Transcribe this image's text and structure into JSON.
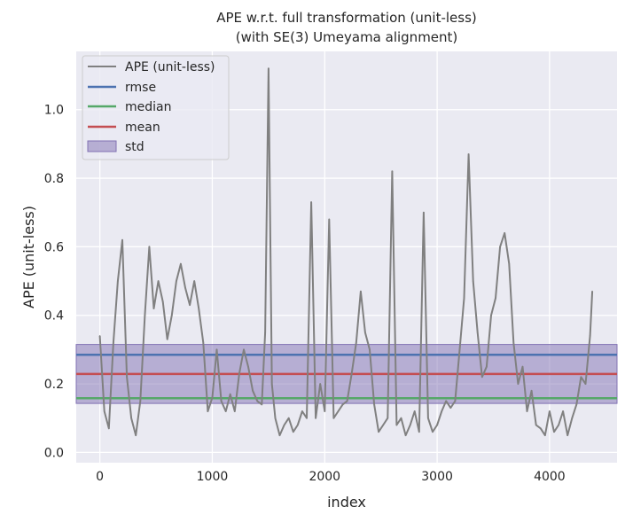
{
  "chart_data": {
    "type": "line",
    "title": "APE w.r.t. full transformation (unit-less)",
    "subtitle": "(with SE(3) Umeyama alignment)",
    "xlabel": "index",
    "ylabel": "APE (unit-less)",
    "xlim": [
      -210,
      4600
    ],
    "ylim": [
      -0.03,
      1.17
    ],
    "xticks": [
      0,
      1000,
      2000,
      3000,
      4000
    ],
    "yticks": [
      0.0,
      0.2,
      0.4,
      0.6,
      0.8,
      1.0
    ],
    "xtick_labels": [
      "0",
      "1000",
      "2000",
      "3000",
      "4000"
    ],
    "ytick_labels": [
      "0.0",
      "0.2",
      "0.4",
      "0.6",
      "0.8",
      "1.0"
    ],
    "grid": true,
    "legend_position": "top-left",
    "legend": [
      "APE (unit-less)",
      "rmse",
      "median",
      "mean",
      "std"
    ],
    "stats": {
      "rmse": 0.285,
      "median": 0.158,
      "mean": 0.229,
      "std_low": 0.143,
      "std_high": 0.315
    },
    "series": [
      {
        "name": "APE (unit-less)",
        "color": "#808080",
        "x": [
          0,
          40,
          80,
          120,
          160,
          200,
          240,
          280,
          320,
          360,
          400,
          440,
          480,
          520,
          560,
          600,
          640,
          680,
          720,
          760,
          800,
          840,
          880,
          920,
          960,
          1000,
          1040,
          1080,
          1120,
          1160,
          1200,
          1240,
          1280,
          1320,
          1360,
          1400,
          1440,
          1470,
          1500,
          1530,
          1560,
          1600,
          1640,
          1680,
          1720,
          1760,
          1800,
          1840,
          1880,
          1920,
          1960,
          2000,
          2040,
          2080,
          2120,
          2160,
          2200,
          2240,
          2280,
          2320,
          2360,
          2400,
          2440,
          2480,
          2520,
          2560,
          2600,
          2640,
          2680,
          2720,
          2760,
          2800,
          2840,
          2880,
          2920,
          2960,
          3000,
          3040,
          3080,
          3120,
          3160,
          3200,
          3240,
          3280,
          3320,
          3360,
          3400,
          3440,
          3480,
          3520,
          3560,
          3600,
          3640,
          3680,
          3720,
          3760,
          3800,
          3840,
          3880,
          3920,
          3960,
          4000,
          4040,
          4080,
          4120,
          4160,
          4200,
          4240,
          4280,
          4320,
          4360,
          4380
        ],
        "y": [
          0.34,
          0.12,
          0.07,
          0.32,
          0.5,
          0.62,
          0.22,
          0.1,
          0.05,
          0.15,
          0.4,
          0.6,
          0.42,
          0.5,
          0.44,
          0.33,
          0.4,
          0.5,
          0.55,
          0.48,
          0.43,
          0.5,
          0.42,
          0.32,
          0.12,
          0.16,
          0.3,
          0.15,
          0.12,
          0.17,
          0.12,
          0.23,
          0.3,
          0.25,
          0.18,
          0.15,
          0.14,
          0.35,
          1.12,
          0.2,
          0.1,
          0.05,
          0.08,
          0.1,
          0.06,
          0.08,
          0.12,
          0.1,
          0.73,
          0.1,
          0.2,
          0.12,
          0.68,
          0.1,
          0.12,
          0.14,
          0.15,
          0.23,
          0.32,
          0.47,
          0.35,
          0.3,
          0.14,
          0.06,
          0.08,
          0.1,
          0.82,
          0.08,
          0.1,
          0.05,
          0.08,
          0.12,
          0.06,
          0.7,
          0.1,
          0.06,
          0.08,
          0.12,
          0.15,
          0.13,
          0.15,
          0.3,
          0.45,
          0.87,
          0.5,
          0.35,
          0.22,
          0.25,
          0.4,
          0.45,
          0.6,
          0.64,
          0.55,
          0.32,
          0.2,
          0.25,
          0.12,
          0.18,
          0.08,
          0.07,
          0.05,
          0.12,
          0.06,
          0.08,
          0.12,
          0.05,
          0.1,
          0.14,
          0.22,
          0.2,
          0.34,
          0.47
        ]
      }
    ]
  },
  "colors": {
    "ape": "#808080",
    "rmse": "#4c72b0",
    "median": "#55a868",
    "mean": "#c44e52",
    "std_fill": "#8172b3",
    "plot_bg": "#eaeaf2",
    "grid": "#ffffff"
  }
}
